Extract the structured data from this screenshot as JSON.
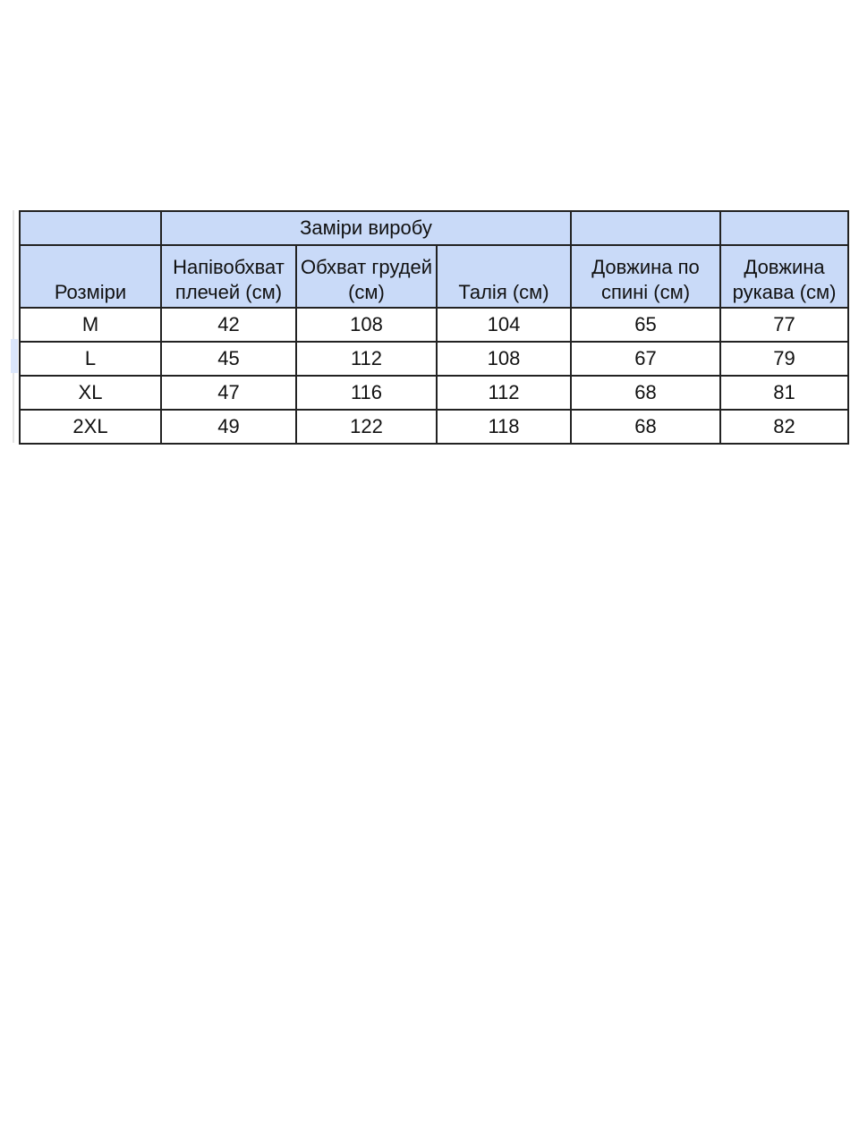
{
  "table": {
    "group_header": "Заміри виробу",
    "headers": [
      "Розміри",
      "Напівобхват плечей (см)",
      "Обхват грудей (см)",
      "Талія (см)",
      "Довжина по спині (см)",
      "Довжина рукава (см)"
    ],
    "rows": [
      [
        "M",
        "42",
        "108",
        "104",
        "65",
        "77"
      ],
      [
        "L",
        "45",
        "112",
        "108",
        "67",
        "79"
      ],
      [
        "XL",
        "47",
        "116",
        "112",
        "68",
        "81"
      ],
      [
        "2XL",
        "49",
        "122",
        "118",
        "68",
        "82"
      ]
    ],
    "header_bg_color": "#c9daf8"
  }
}
